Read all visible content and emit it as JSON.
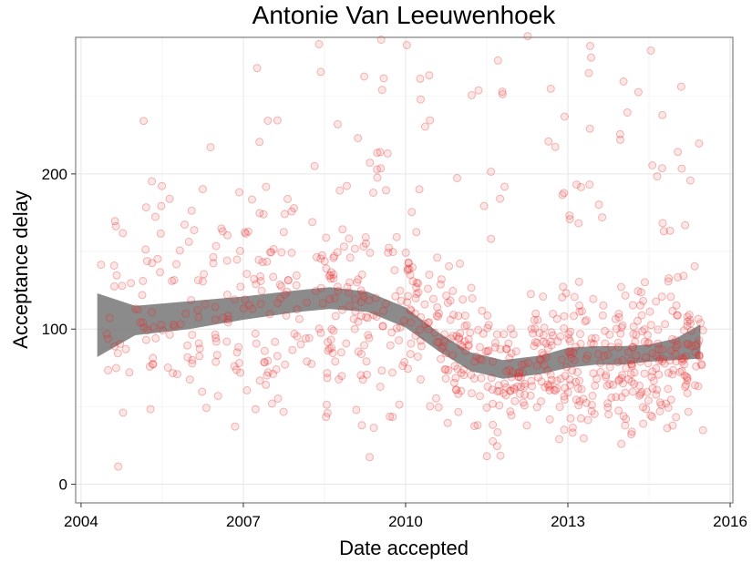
{
  "chart_data": {
    "type": "scatter",
    "title": "Antonie Van Leeuwenhoek",
    "xlabel": "Date accepted",
    "ylabel": "Acceptance delay",
    "xlim": [
      2003.9,
      2016.05
    ],
    "ylim": [
      -12,
      288
    ],
    "xticks": [
      2004,
      2007,
      2010,
      2013,
      2016
    ],
    "yticks": [
      0,
      100,
      200
    ],
    "xtick_labels": [
      "2004",
      "2007",
      "2010",
      "2013",
      "2016"
    ],
    "ytick_labels": [
      "0",
      "100",
      "200"
    ],
    "grid": true,
    "point_color": "#f03c3c",
    "band_color": "#6a6a6a",
    "point_count": 900,
    "point_generation_note_omitted": true,
    "smooth": {
      "x": [
        2004.3,
        2005.0,
        2006.0,
        2007.0,
        2008.0,
        2008.6,
        2009.3,
        2010.0,
        2010.6,
        2011.2,
        2011.8,
        2012.5,
        2013.0,
        2013.5,
        2014.0,
        2014.5,
        2015.0,
        2015.45
      ],
      "lower": [
        82,
        96,
        100,
        106,
        111,
        113,
        111,
        101,
        86,
        73,
        68,
        71,
        75,
        77,
        77,
        79,
        80,
        81
      ],
      "upper": [
        123,
        115,
        118,
        121,
        125,
        127,
        124,
        114,
        98,
        85,
        80,
        83,
        88,
        89,
        89,
        90,
        94,
        103
      ]
    },
    "points": {
      "x_range": [
        2004.25,
        2015.5
      ],
      "y_range": [
        2,
        290
      ]
    }
  }
}
